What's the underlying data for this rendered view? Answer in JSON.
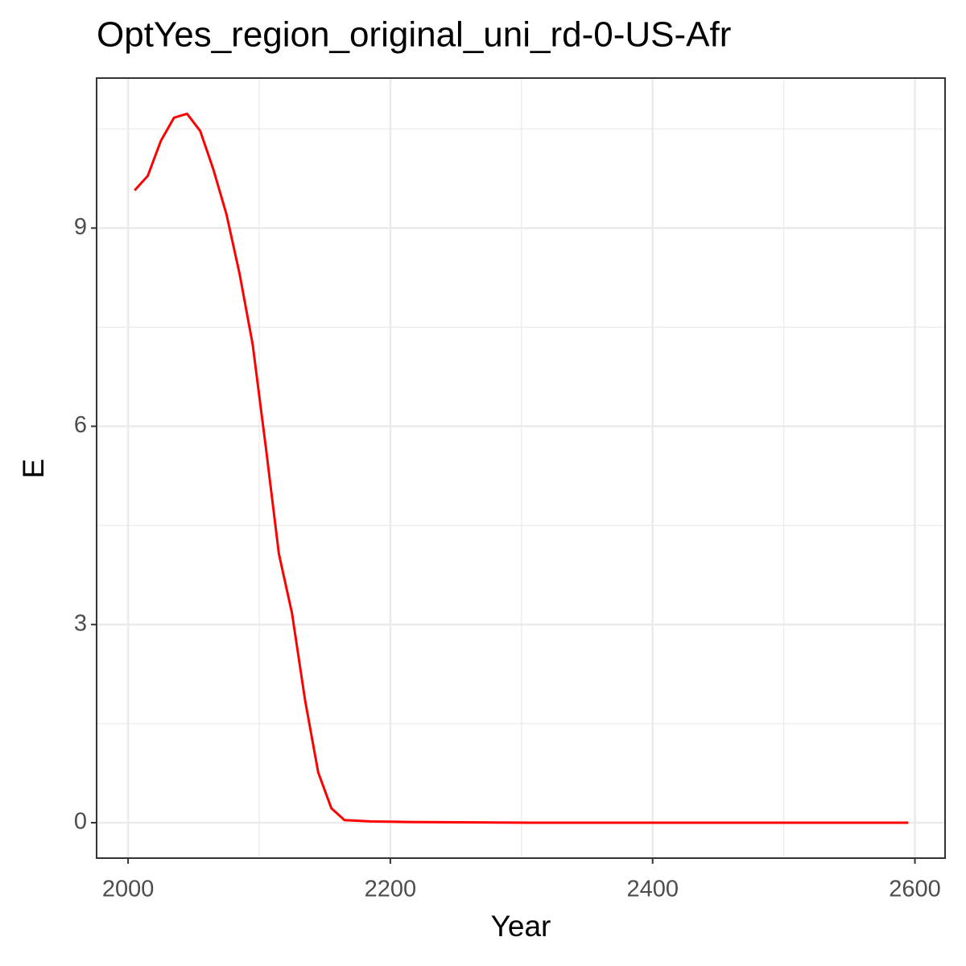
{
  "chart_data": {
    "type": "line",
    "title": "OptYes_region_original_uni_rd-0-US-Afr",
    "x_label": "Year",
    "y_label": "E",
    "x": [
      2005,
      2015,
      2025,
      2035,
      2045,
      2055,
      2065,
      2075,
      2085,
      2095,
      2105,
      2115,
      2125,
      2135,
      2145,
      2155,
      2165,
      2185,
      2215,
      2305,
      2595
    ],
    "series": [
      {
        "name": "E",
        "color": "#ff0000",
        "values": [
          9.57,
          9.79,
          10.32,
          10.67,
          10.73,
          10.47,
          9.89,
          9.21,
          8.31,
          7.24,
          5.69,
          4.07,
          3.17,
          1.85,
          0.76,
          0.22,
          0.04,
          0.02,
          0.01,
          0.0,
          0.0
        ]
      }
    ],
    "xlim": [
      1976,
      2623
    ],
    "ylim": [
      -0.536,
      11.27
    ],
    "xticks": [
      2000,
      2200,
      2400,
      2600
    ],
    "yticks": [
      0,
      3,
      6,
      9
    ],
    "grid": true
  }
}
